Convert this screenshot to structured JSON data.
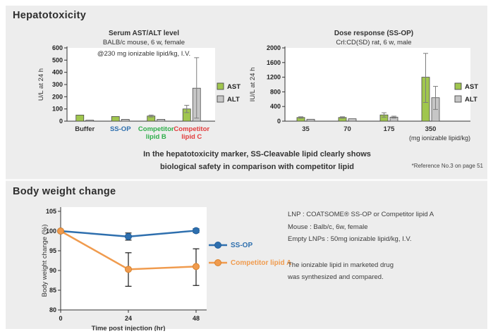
{
  "sections": {
    "hepatotoxicity": {
      "title": "Hepatotoxicity",
      "statement_line1": "In the hepatotoxicity marker, SS-Cleavable lipid clearly shows",
      "statement_line2": "biological safety in comparison with competitor lipid",
      "reference": "*Reference No.3 on page 51"
    },
    "body_weight": {
      "title": "Body weight change",
      "legend": [
        "SS-OP",
        "Competitor lipid A"
      ],
      "details": [
        "LNP : COATSOME® SS-OP or Competitor lipid A",
        "Mouse : Balb/c, 6w, female",
        "Empty LNPs : 50mg ionizable lipid/kg, I.V."
      ],
      "notes": [
        "The ionizable lipid in marketed drug",
        "was synthesized and compared."
      ]
    }
  },
  "colors": {
    "panel_bg": "#ededed",
    "plot_bg": "#ffffff",
    "axis": "#333333",
    "bar_border": "#4a4a4a",
    "error_bar": "#7d7d7d",
    "line_error_bar": "#1a1a1a",
    "ast_green": "#a0c64e",
    "alt_gray": "#c6c6c6",
    "ssop_blue": "#2e6fae",
    "competitor_orange": "#f09b4e"
  },
  "chart_data": [
    {
      "id": "serum-ast-alt",
      "type": "bar",
      "title": "Serum AST/ALT level",
      "subtitle": "BALB/c mouse, 6 w, female",
      "annotation": "@230 mg ionizable lipid/kg, I.V.",
      "ylabel": "U/L at 24 h",
      "ylim": [
        0,
        600
      ],
      "ytick_step": 100,
      "legend": [
        "AST",
        "ALT"
      ],
      "legend_position": "right",
      "grid": false,
      "categories": [
        {
          "lines": [
            "Buffer"
          ],
          "color": "#333333"
        },
        {
          "lines": [
            "SS-OP"
          ],
          "color": "#2e6fae"
        },
        {
          "lines": [
            "Competitor",
            "lipid B"
          ],
          "color": "#2fae4a"
        },
        {
          "lines": [
            "Competitor",
            "lipid C"
          ],
          "color": "#e23b3b"
        }
      ],
      "series": [
        {
          "name": "AST",
          "color": "#a0c64e",
          "values": [
            50,
            38,
            42,
            100
          ],
          "err_low": [
            0,
            0,
            8,
            30
          ],
          "err_high": [
            0,
            0,
            8,
            30
          ]
        },
        {
          "name": "ALT",
          "color": "#c6c6c6",
          "values": [
            8,
            15,
            15,
            270
          ],
          "err_low": [
            0,
            0,
            0,
            245
          ],
          "err_high": [
            0,
            0,
            0,
            250
          ]
        }
      ]
    },
    {
      "id": "dose-response",
      "type": "bar",
      "title": "Dose response (SS-OP)",
      "subtitle": "Crl:CD(SD) rat, 6 w, male",
      "ylabel": "IU/L at 24 h",
      "xlabel": "(mg ionizable lipid/kg)",
      "ylim": [
        0,
        2000
      ],
      "ytick_step": 400,
      "legend": [
        "AST",
        "ALT"
      ],
      "legend_position": "right",
      "grid": false,
      "categories": [
        {
          "lines": [
            "35"
          ],
          "color": "#333333"
        },
        {
          "lines": [
            "70"
          ],
          "color": "#333333"
        },
        {
          "lines": [
            "175"
          ],
          "color": "#333333"
        },
        {
          "lines": [
            "350"
          ],
          "color": "#333333"
        }
      ],
      "series": [
        {
          "name": "AST",
          "color": "#a0c64e",
          "values": [
            100,
            100,
            170,
            1200
          ],
          "err_low": [
            20,
            20,
            60,
            690
          ],
          "err_high": [
            20,
            20,
            60,
            650
          ]
        },
        {
          "name": "ALT",
          "color": "#c6c6c6",
          "values": [
            52,
            65,
            110,
            640
          ],
          "err_low": [
            0,
            0,
            25,
            320
          ],
          "err_high": [
            0,
            0,
            25,
            310
          ]
        }
      ]
    },
    {
      "id": "body-weight-change",
      "type": "line",
      "ylabel": "Body weight change (%)",
      "xlabel": "Time post injection (hr)",
      "ylim": [
        80,
        105
      ],
      "ytick_step": 5,
      "x": [
        0,
        24,
        48
      ],
      "grid": false,
      "legend_position": "right",
      "series": [
        {
          "name": "SS-OP",
          "color": "#2e6fae",
          "marker_stroke": "#1f5f9e",
          "values": [
            100,
            98.6,
            100.1
          ],
          "err_low": [
            0,
            0.9,
            0.5
          ],
          "err_high": [
            0,
            0.9,
            0.5
          ]
        },
        {
          "name": "Competitor lipid A",
          "color": "#f09b4e",
          "marker_stroke": "#d9822b",
          "values": [
            100,
            90.3,
            91.0
          ],
          "err_low": [
            0,
            4.3,
            4.8
          ],
          "err_high": [
            0,
            4.2,
            4.5
          ]
        }
      ]
    }
  ]
}
